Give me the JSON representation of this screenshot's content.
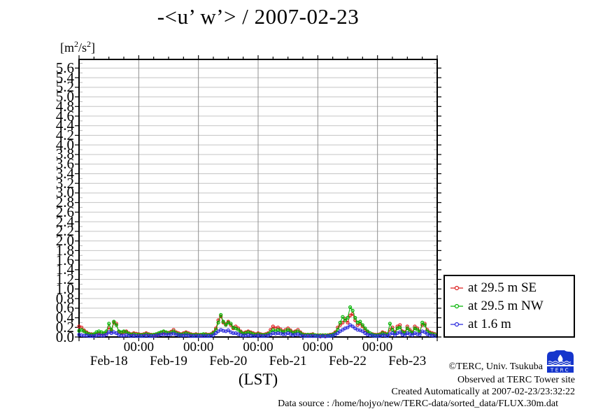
{
  "chart_data": {
    "type": "line",
    "title": "-<u’ w’> / 2007-02-23",
    "units": {
      "prefix": "[m",
      "sup1": "2",
      "mid": "/s",
      "sup2": "2",
      "suffix": "]"
    },
    "xlabel": "(LST)",
    "x_axis": {
      "day_labels": [
        "Feb-18",
        "Feb-19",
        "Feb-20",
        "Feb-21",
        "Feb-22",
        "Feb-23"
      ],
      "midnight_labels": [
        "00:00",
        "00:00",
        "00:00",
        "00:00",
        "00:00"
      ],
      "hours_per_day": 24,
      "num_days": 6,
      "minor_tick_hours": 6,
      "x_start": "Feb-18 00:00",
      "x_step_hours": 1
    },
    "y_axis": {
      "tick_labels": [
        "0.0",
        "0.2",
        "0.4",
        "0.6",
        "0.8",
        "1.0",
        "1.2",
        "1.4",
        "1.6",
        "1.8",
        "2.0",
        "2.2",
        "2.4",
        "2.6",
        "2.8",
        "3.0",
        "3.2",
        "3.4",
        "3.6",
        "3.8",
        "4.0",
        "4.2",
        "4.4",
        "4.6",
        "4.8",
        "5.0",
        "5.2",
        "5.4",
        "5.6"
      ],
      "tick_step": 0.2,
      "minor_step": 0.1,
      "ylim": [
        0,
        5.78
      ]
    },
    "grid": {
      "horizontal": true,
      "vertical_midnights": true,
      "color": "#c4c4c4",
      "midnight_color": "#909090"
    },
    "legend_position": "outside-right-bottom",
    "series": [
      {
        "name": "at 29.5 m SE",
        "color": "#dd2020",
        "values": [
          0.22,
          0.2,
          0.14,
          0.1,
          0.07,
          0.06,
          0.05,
          0.06,
          0.08,
          0.07,
          0.06,
          0.08,
          0.2,
          0.12,
          0.3,
          0.28,
          0.1,
          0.08,
          0.1,
          0.12,
          0.08,
          0.06,
          0.08,
          0.07,
          0.06,
          0.05,
          0.06,
          0.08,
          0.06,
          0.05,
          0.04,
          0.05,
          0.06,
          0.08,
          0.1,
          0.08,
          0.09,
          0.11,
          0.15,
          0.1,
          0.08,
          0.06,
          0.08,
          0.1,
          0.08,
          0.06,
          0.05,
          0.06,
          0.05,
          0.04,
          0.05,
          0.06,
          0.05,
          0.06,
          0.1,
          0.18,
          0.35,
          0.43,
          0.3,
          0.27,
          0.32,
          0.25,
          0.18,
          0.22,
          0.18,
          0.12,
          0.08,
          0.1,
          0.12,
          0.1,
          0.08,
          0.06,
          0.08,
          0.06,
          0.05,
          0.06,
          0.08,
          0.15,
          0.22,
          0.18,
          0.2,
          0.16,
          0.12,
          0.15,
          0.18,
          0.14,
          0.1,
          0.12,
          0.15,
          0.1,
          0.06,
          0.05,
          0.04,
          0.05,
          0.06,
          0.04,
          0.04,
          0.03,
          0.04,
          0.03,
          0.04,
          0.05,
          0.06,
          0.1,
          0.2,
          0.25,
          0.3,
          0.38,
          0.3,
          0.45,
          0.48,
          0.35,
          0.25,
          0.28,
          0.22,
          0.15,
          0.1,
          0.08,
          0.06,
          0.05,
          0.05,
          0.06,
          0.1,
          0.08,
          0.06,
          0.15,
          0.2,
          0.1,
          0.22,
          0.25,
          0.12,
          0.1,
          0.22,
          0.15,
          0.1,
          0.22,
          0.18,
          0.12,
          0.25,
          0.28,
          0.15,
          0.1,
          0.08,
          0.06
        ]
      },
      {
        "name": "at 29.5 m NW",
        "color": "#00b400",
        "values": [
          0.13,
          0.15,
          0.12,
          0.08,
          0.06,
          0.05,
          0.06,
          0.1,
          0.12,
          0.1,
          0.08,
          0.12,
          0.28,
          0.15,
          0.32,
          0.25,
          0.12,
          0.1,
          0.12,
          0.1,
          0.07,
          0.05,
          0.06,
          0.05,
          0.05,
          0.04,
          0.05,
          0.06,
          0.05,
          0.04,
          0.05,
          0.06,
          0.08,
          0.1,
          0.12,
          0.1,
          0.08,
          0.09,
          0.12,
          0.08,
          0.06,
          0.05,
          0.06,
          0.08,
          0.06,
          0.05,
          0.04,
          0.05,
          0.04,
          0.05,
          0.06,
          0.05,
          0.04,
          0.05,
          0.08,
          0.15,
          0.3,
          0.46,
          0.32,
          0.25,
          0.3,
          0.28,
          0.2,
          0.18,
          0.15,
          0.1,
          0.07,
          0.08,
          0.1,
          0.08,
          0.06,
          0.05,
          0.06,
          0.05,
          0.04,
          0.05,
          0.06,
          0.1,
          0.15,
          0.12,
          0.15,
          0.13,
          0.1,
          0.12,
          0.15,
          0.12,
          0.08,
          0.1,
          0.12,
          0.08,
          0.05,
          0.04,
          0.05,
          0.04,
          0.05,
          0.04,
          0.03,
          0.04,
          0.03,
          0.04,
          0.03,
          0.04,
          0.05,
          0.08,
          0.15,
          0.3,
          0.42,
          0.35,
          0.4,
          0.62,
          0.55,
          0.4,
          0.3,
          0.32,
          0.25,
          0.18,
          0.12,
          0.08,
          0.05,
          0.04,
          0.04,
          0.05,
          0.08,
          0.06,
          0.05,
          0.28,
          0.15,
          0.08,
          0.18,
          0.2,
          0.1,
          0.08,
          0.18,
          0.12,
          0.08,
          0.18,
          0.15,
          0.1,
          0.3,
          0.25,
          0.12,
          0.08,
          0.06,
          0.05
        ]
      },
      {
        "name": "at 1.6 m",
        "color": "#2828dd",
        "values": [
          0.05,
          0.04,
          0.03,
          0.03,
          0.02,
          0.02,
          0.02,
          0.03,
          0.04,
          0.03,
          0.03,
          0.05,
          0.1,
          0.08,
          0.1,
          0.08,
          0.04,
          0.03,
          0.03,
          0.04,
          0.03,
          0.02,
          0.03,
          0.02,
          0.02,
          0.02,
          0.02,
          0.03,
          0.02,
          0.02,
          0.02,
          0.03,
          0.04,
          0.05,
          0.06,
          0.05,
          0.05,
          0.06,
          0.07,
          0.05,
          0.04,
          0.03,
          0.03,
          0.04,
          0.03,
          0.02,
          0.02,
          0.02,
          0.02,
          0.02,
          0.02,
          0.02,
          0.02,
          0.02,
          0.04,
          0.08,
          0.12,
          0.15,
          0.13,
          0.12,
          0.14,
          0.1,
          0.08,
          0.08,
          0.06,
          0.04,
          0.03,
          0.03,
          0.04,
          0.03,
          0.02,
          0.02,
          0.03,
          0.02,
          0.02,
          0.02,
          0.03,
          0.05,
          0.08,
          0.07,
          0.08,
          0.07,
          0.06,
          0.06,
          0.08,
          0.06,
          0.04,
          0.05,
          0.06,
          0.04,
          0.02,
          0.02,
          0.02,
          0.02,
          0.02,
          0.02,
          0.02,
          0.01,
          0.02,
          0.01,
          0.02,
          0.02,
          0.03,
          0.05,
          0.08,
          0.12,
          0.15,
          0.18,
          0.2,
          0.25,
          0.22,
          0.18,
          0.15,
          0.14,
          0.12,
          0.08,
          0.05,
          0.04,
          0.03,
          0.02,
          0.02,
          0.02,
          0.04,
          0.03,
          0.02,
          0.06,
          0.08,
          0.04,
          0.08,
          0.1,
          0.05,
          0.04,
          0.08,
          0.06,
          0.04,
          0.08,
          0.06,
          0.05,
          0.12,
          0.1,
          0.06,
          0.04,
          0.03,
          0.02
        ]
      }
    ]
  },
  "footer": {
    "copyright": "©TERC, Univ. Tsukuba",
    "observed": "Observed at TERC Tower site",
    "created": "Created Automatically at 2007-02-23/23:32:22",
    "datasource": "Data source : /home/hojyo/new/TERC-data/sorted_data/FLUX.30m.dat"
  },
  "logo": {
    "text": "TERC",
    "color": "#1535cc"
  }
}
